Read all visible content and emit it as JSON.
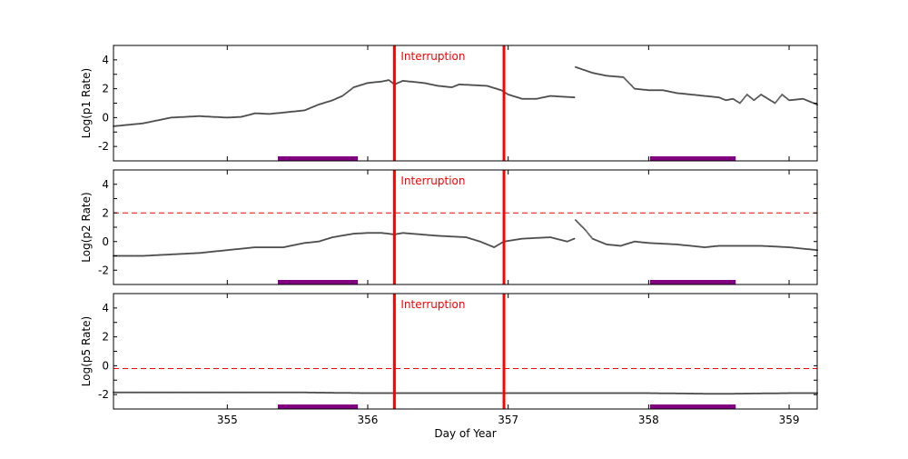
{
  "chart_data": [
    {
      "type": "scatter",
      "ylabel": "Log(p1 Rate)",
      "xlim": [
        354.19,
        359.2
      ],
      "ylim": [
        -3,
        5
      ],
      "yticks": [
        -2,
        0,
        2,
        4
      ],
      "annotation": "Interruption",
      "vlines": [
        356.19,
        356.97
      ],
      "hline": null,
      "bars": [
        [
          355.36,
          355.93
        ],
        [
          358.01,
          358.62
        ]
      ],
      "segments": [
        [
          [
            354.19,
            -0.6
          ],
          [
            354.4,
            -0.4
          ],
          [
            354.6,
            0.0
          ],
          [
            354.8,
            0.1
          ],
          [
            355.0,
            0.0
          ],
          [
            355.1,
            0.05
          ],
          [
            355.2,
            0.3
          ],
          [
            355.3,
            0.25
          ],
          [
            355.45,
            0.4
          ],
          [
            355.55,
            0.5
          ],
          [
            355.65,
            0.9
          ],
          [
            355.75,
            1.2
          ],
          [
            355.82,
            1.5
          ],
          [
            355.9,
            2.1
          ],
          [
            356.0,
            2.4
          ],
          [
            356.1,
            2.5
          ],
          [
            356.15,
            2.6
          ],
          [
            356.19,
            2.3
          ],
          [
            356.25,
            2.55
          ],
          [
            356.4,
            2.4
          ],
          [
            356.5,
            2.2
          ],
          [
            356.6,
            2.1
          ],
          [
            356.65,
            2.3
          ],
          [
            356.85,
            2.2
          ],
          [
            356.95,
            1.9
          ],
          [
            357.0,
            1.6
          ],
          [
            357.1,
            1.3
          ],
          [
            357.2,
            1.3
          ],
          [
            357.3,
            1.5
          ],
          [
            357.47,
            1.4
          ]
        ],
        [
          [
            357.48,
            3.5
          ],
          [
            357.6,
            3.1
          ],
          [
            357.7,
            2.9
          ],
          [
            357.82,
            2.8
          ],
          [
            357.87,
            2.3
          ],
          [
            357.9,
            2.0
          ],
          [
            358.0,
            1.9
          ],
          [
            358.1,
            1.9
          ],
          [
            358.2,
            1.7
          ],
          [
            358.3,
            1.6
          ],
          [
            358.4,
            1.5
          ],
          [
            358.5,
            1.4
          ],
          [
            358.55,
            1.2
          ],
          [
            358.6,
            1.3
          ],
          [
            358.65,
            1.0
          ],
          [
            358.7,
            1.6
          ],
          [
            358.75,
            1.2
          ],
          [
            358.8,
            1.6
          ],
          [
            358.9,
            1.0
          ],
          [
            358.95,
            1.6
          ],
          [
            359.0,
            1.2
          ],
          [
            359.1,
            1.3
          ],
          [
            359.2,
            0.9
          ]
        ]
      ]
    },
    {
      "type": "scatter",
      "ylabel": "Log(p2 Rate)",
      "xlim": [
        354.19,
        359.2
      ],
      "ylim": [
        -3,
        5
      ],
      "yticks": [
        -2,
        0,
        2,
        4
      ],
      "annotation": "Interruption",
      "vlines": [
        356.19,
        356.97
      ],
      "hline": 2,
      "bars": [
        [
          355.36,
          355.93
        ],
        [
          358.01,
          358.62
        ]
      ],
      "segments": [
        [
          [
            354.19,
            -1.0
          ],
          [
            354.4,
            -1.0
          ],
          [
            354.6,
            -0.9
          ],
          [
            354.8,
            -0.8
          ],
          [
            355.0,
            -0.6
          ],
          [
            355.2,
            -0.4
          ],
          [
            355.4,
            -0.4
          ],
          [
            355.55,
            -0.1
          ],
          [
            355.65,
            0.0
          ],
          [
            355.75,
            0.3
          ],
          [
            355.9,
            0.55
          ],
          [
            356.0,
            0.6
          ],
          [
            356.1,
            0.6
          ],
          [
            356.19,
            0.5
          ],
          [
            356.25,
            0.6
          ],
          [
            356.5,
            0.4
          ],
          [
            356.7,
            0.3
          ],
          [
            356.8,
            0.0
          ],
          [
            356.9,
            -0.4
          ],
          [
            356.97,
            0.0
          ],
          [
            357.1,
            0.2
          ],
          [
            357.3,
            0.3
          ],
          [
            357.42,
            0.0
          ],
          [
            357.47,
            0.2
          ]
        ],
        [
          [
            357.48,
            1.5
          ],
          [
            357.55,
            0.8
          ],
          [
            357.6,
            0.2
          ],
          [
            357.7,
            -0.2
          ],
          [
            357.8,
            -0.3
          ],
          [
            357.9,
            0.0
          ],
          [
            358.0,
            -0.1
          ],
          [
            358.2,
            -0.2
          ],
          [
            358.4,
            -0.4
          ],
          [
            358.5,
            -0.3
          ],
          [
            358.8,
            -0.3
          ],
          [
            359.0,
            -0.4
          ],
          [
            359.2,
            -0.6
          ]
        ]
      ]
    },
    {
      "type": "scatter",
      "ylabel": "Log(p5 Rate)",
      "xlabel": "Day of Year",
      "xlim": [
        354.19,
        359.2
      ],
      "ylim": [
        -3,
        5
      ],
      "yticks": [
        -2,
        0,
        2,
        4
      ],
      "xticks": [
        355,
        356,
        357,
        358,
        359
      ],
      "annotation": "Interruption",
      "vlines": [
        356.19,
        356.97
      ],
      "hline": -0.2,
      "bars": [
        [
          355.36,
          355.93
        ],
        [
          358.01,
          358.62
        ]
      ],
      "segments": [
        [
          [
            354.19,
            -1.85
          ],
          [
            355.0,
            -1.85
          ],
          [
            355.5,
            -1.85
          ],
          [
            356.0,
            -1.9
          ],
          [
            356.5,
            -1.9
          ],
          [
            357.0,
            -1.9
          ],
          [
            357.5,
            -1.9
          ],
          [
            358.0,
            -1.9
          ],
          [
            358.5,
            -1.95
          ],
          [
            359.0,
            -1.9
          ],
          [
            359.2,
            -1.9
          ]
        ]
      ]
    }
  ],
  "colors": {
    "points": "#444444",
    "interruption": "#ff0000",
    "bars": "#800080",
    "dashed": "#ff0000"
  }
}
